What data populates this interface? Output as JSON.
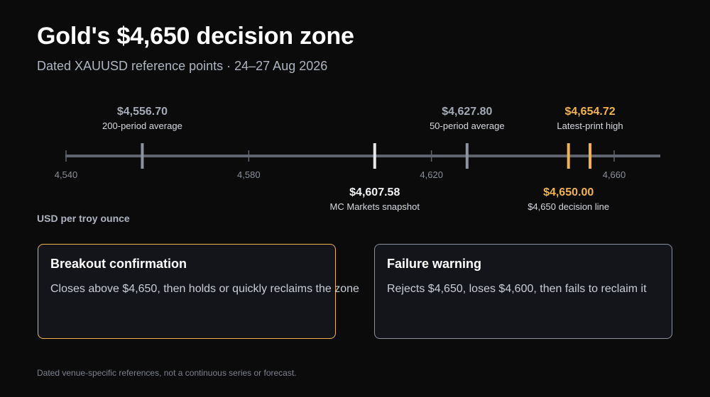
{
  "header": {
    "title": "Gold's $4,650 decision zone",
    "subtitle": "Dated XAUUSD reference points · 24–27 Aug 2026"
  },
  "colors": {
    "background": "#0b0b0c",
    "axis": "#5f646e",
    "neutral_marker": "#8c939e",
    "snapshot_marker": "#e6e8ec",
    "accent_gold": "#f2b34c"
  },
  "chart_data": {
    "type": "scatter",
    "title": "Gold's $4,650 decision zone",
    "subtitle": "Dated XAUUSD reference points · 24–27 Aug 2026",
    "xlabel": "USD per troy ounce",
    "xlim": [
      4540,
      4665
    ],
    "ticks": [
      {
        "value": 4540,
        "label": "4,540"
      },
      {
        "value": 4580,
        "label": "4,580"
      },
      {
        "value": 4620,
        "label": "4,620"
      },
      {
        "value": 4660,
        "label": "4,660"
      }
    ],
    "points": [
      {
        "value": 4556.7,
        "price_label": "$4,556.70",
        "name": "200-period average",
        "position": "above",
        "style": "neutral"
      },
      {
        "value": 4607.58,
        "price_label": "$4,607.58",
        "name": "MC Markets snapshot",
        "position": "below",
        "style": "snapshot"
      },
      {
        "value": 4627.8,
        "price_label": "$4,627.80",
        "name": "50-period average",
        "position": "above",
        "style": "neutral"
      },
      {
        "value": 4650.0,
        "price_label": "$4,650.00",
        "name": "$4,650 decision line",
        "position": "below",
        "style": "accent"
      },
      {
        "value": 4654.72,
        "price_label": "$4,654.72",
        "name": "Latest-print high",
        "position": "above",
        "style": "accent"
      }
    ]
  },
  "cards": {
    "breakout": {
      "title": "Breakout confirmation",
      "body": "Closes above $4,650, then holds or quickly reclaims the zone"
    },
    "failure": {
      "title": "Failure warning",
      "body": "Rejects $4,650, loses $4,600, then fails to reclaim it"
    }
  },
  "footnote": "Dated venue-specific references, not a continuous series or forecast."
}
